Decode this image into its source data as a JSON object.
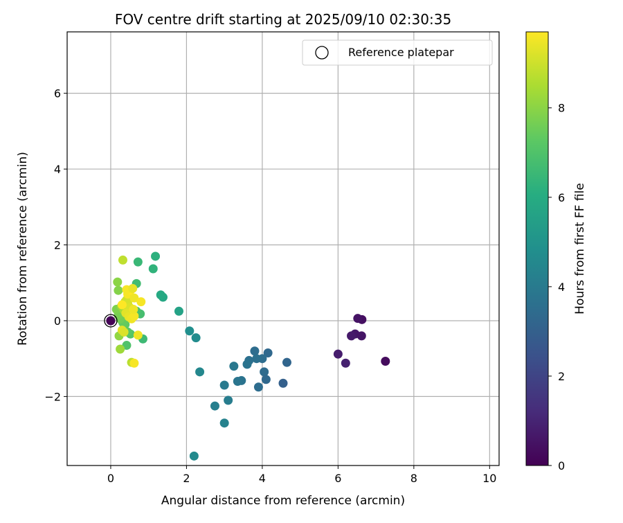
{
  "chart_data": {
    "type": "scatter",
    "title": "FOV centre drift starting at 2025/09/10 02:30:35",
    "xlabel": "Angular distance from reference (arcmin)",
    "ylabel": "Rotation from reference (arcmin)",
    "xlim": [
      -1.15,
      10.25
    ],
    "ylim": [
      -3.82,
      7.62
    ],
    "x_ticks": [
      0,
      2,
      4,
      6,
      8,
      10
    ],
    "y_ticks": [
      -2,
      0,
      2,
      4,
      6
    ],
    "x_tick_labels": [
      "0",
      "2",
      "4",
      "6",
      "8",
      "10"
    ],
    "y_tick_labels": [
      "−2",
      "0",
      "2",
      "4",
      "6"
    ],
    "grid": true,
    "legend": {
      "position": "top-right",
      "entries": [
        {
          "label": "Reference platepar",
          "marker": "hollow-circle",
          "color": "#000000"
        }
      ]
    },
    "colorbar": {
      "label": "Hours from first FF file",
      "range": [
        0,
        9.7
      ],
      "ticks": [
        0,
        2,
        4,
        6,
        8
      ],
      "tick_labels": [
        "0",
        "2",
        "4",
        "6",
        "8"
      ],
      "colormap": "viridis"
    },
    "reference_point": {
      "x": 0,
      "y": 0
    },
    "series": [
      {
        "points": [
          {
            "x": 0.0,
            "y": 0.0,
            "h": 0.0
          },
          {
            "x": 0.0,
            "y": 0.0,
            "h": 0.05
          },
          {
            "x": 6.63,
            "y": 0.03,
            "h": 0.4
          },
          {
            "x": 6.52,
            "y": 0.06,
            "h": 0.5
          },
          {
            "x": 6.45,
            "y": -0.35,
            "h": 0.6
          },
          {
            "x": 6.35,
            "y": -0.4,
            "h": 0.7
          },
          {
            "x": 6.62,
            "y": -0.4,
            "h": 0.55
          },
          {
            "x": 7.25,
            "y": -1.07,
            "h": 0.3
          },
          {
            "x": 6.0,
            "y": -0.88,
            "h": 0.8
          },
          {
            "x": 6.2,
            "y": -1.12,
            "h": 0.9
          },
          {
            "x": 4.65,
            "y": -1.1,
            "h": 3.2
          },
          {
            "x": 4.55,
            "y": -1.65,
            "h": 3.0
          },
          {
            "x": 4.15,
            "y": -0.85,
            "h": 3.3
          },
          {
            "x": 4.05,
            "y": -1.35,
            "h": 3.4
          },
          {
            "x": 4.1,
            "y": -1.55,
            "h": 3.3
          },
          {
            "x": 4.0,
            "y": -1.0,
            "h": 3.5
          },
          {
            "x": 3.8,
            "y": -0.8,
            "h": 3.5
          },
          {
            "x": 3.85,
            "y": -1.0,
            "h": 3.6
          },
          {
            "x": 3.65,
            "y": -1.05,
            "h": 3.6
          },
          {
            "x": 3.6,
            "y": -1.15,
            "h": 3.7
          },
          {
            "x": 3.9,
            "y": -1.75,
            "h": 3.5
          },
          {
            "x": 3.45,
            "y": -1.58,
            "h": 3.7
          },
          {
            "x": 3.35,
            "y": -1.6,
            "h": 3.8
          },
          {
            "x": 3.25,
            "y": -1.2,
            "h": 3.9
          },
          {
            "x": 3.0,
            "y": -1.7,
            "h": 4.0
          },
          {
            "x": 3.1,
            "y": -2.1,
            "h": 4.1
          },
          {
            "x": 2.75,
            "y": -2.25,
            "h": 4.2
          },
          {
            "x": 3.0,
            "y": -2.7,
            "h": 4.3
          },
          {
            "x": 2.35,
            "y": -1.35,
            "h": 4.5
          },
          {
            "x": 2.25,
            "y": -0.45,
            "h": 4.7
          },
          {
            "x": 2.08,
            "y": -0.27,
            "h": 4.8
          },
          {
            "x": 2.2,
            "y": -3.57,
            "h": 4.6
          },
          {
            "x": 1.8,
            "y": 0.25,
            "h": 5.6
          },
          {
            "x": 1.38,
            "y": 0.62,
            "h": 5.8
          },
          {
            "x": 1.32,
            "y": 0.68,
            "h": 5.9
          },
          {
            "x": 1.18,
            "y": 1.7,
            "h": 6.2
          },
          {
            "x": 1.12,
            "y": 1.37,
            "h": 6.3
          },
          {
            "x": 0.72,
            "y": 1.55,
            "h": 6.5
          },
          {
            "x": 0.68,
            "y": 0.98,
            "h": 6.7
          },
          {
            "x": 0.85,
            "y": -0.48,
            "h": 6.6
          },
          {
            "x": 0.78,
            "y": 0.18,
            "h": 6.8
          },
          {
            "x": 0.68,
            "y": 0.25,
            "h": 6.9
          },
          {
            "x": 0.42,
            "y": -0.65,
            "h": 7.0
          },
          {
            "x": 0.52,
            "y": -0.35,
            "h": 7.1
          },
          {
            "x": 0.45,
            "y": -0.3,
            "h": 7.2
          },
          {
            "x": 0.38,
            "y": -0.1,
            "h": 7.3
          },
          {
            "x": 0.32,
            "y": -0.05,
            "h": 7.4
          },
          {
            "x": 0.3,
            "y": 0.1,
            "h": 7.5
          },
          {
            "x": 0.25,
            "y": 0.05,
            "h": 7.6
          },
          {
            "x": 0.2,
            "y": 0.15,
            "h": 7.7
          },
          {
            "x": 0.15,
            "y": 0.3,
            "h": 7.8
          },
          {
            "x": 0.2,
            "y": 0.8,
            "h": 7.9
          },
          {
            "x": 0.18,
            "y": 1.02,
            "h": 8.0
          },
          {
            "x": 0.22,
            "y": -0.4,
            "h": 8.1
          },
          {
            "x": 0.25,
            "y": -0.75,
            "h": 8.3
          },
          {
            "x": 0.28,
            "y": 0.38,
            "h": 8.2
          },
          {
            "x": 0.35,
            "y": 0.28,
            "h": 8.4
          },
          {
            "x": 0.55,
            "y": -1.1,
            "h": 8.7
          },
          {
            "x": 0.32,
            "y": 1.6,
            "h": 8.8
          },
          {
            "x": 0.38,
            "y": 0.5,
            "h": 8.9
          },
          {
            "x": 0.42,
            "y": 0.55,
            "h": 9.0
          },
          {
            "x": 0.45,
            "y": 0.45,
            "h": 9.1
          },
          {
            "x": 0.5,
            "y": 0.35,
            "h": 9.2
          },
          {
            "x": 0.4,
            "y": 0.2,
            "h": 9.3
          },
          {
            "x": 0.48,
            "y": 0.1,
            "h": 9.4
          },
          {
            "x": 0.55,
            "y": 0.05,
            "h": 9.5
          },
          {
            "x": 0.62,
            "y": 0.12,
            "h": 9.6
          },
          {
            "x": 0.6,
            "y": 0.3,
            "h": 9.5
          },
          {
            "x": 0.45,
            "y": 0.7,
            "h": 9.6
          },
          {
            "x": 0.52,
            "y": 0.8,
            "h": 9.7
          },
          {
            "x": 0.42,
            "y": 0.82,
            "h": 9.6
          },
          {
            "x": 0.58,
            "y": 0.85,
            "h": 9.4
          },
          {
            "x": 0.62,
            "y": 0.6,
            "h": 9.5
          },
          {
            "x": 0.8,
            "y": 0.5,
            "h": 9.6
          },
          {
            "x": 0.3,
            "y": -0.25,
            "h": 9.3
          },
          {
            "x": 0.35,
            "y": -0.3,
            "h": 9.2
          },
          {
            "x": 0.72,
            "y": -0.38,
            "h": 9.5
          },
          {
            "x": 0.62,
            "y": -1.12,
            "h": 9.6
          },
          {
            "x": 0.3,
            "y": 0.42,
            "h": 9.7
          }
        ]
      }
    ]
  }
}
